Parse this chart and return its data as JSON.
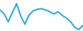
{
  "x": [
    0,
    1,
    2,
    3,
    4,
    5,
    6,
    7,
    8,
    9,
    10,
    11,
    12,
    13,
    14,
    15,
    16,
    17,
    18,
    19,
    20
  ],
  "y": [
    0.68,
    0.55,
    0.3,
    0.6,
    0.88,
    0.48,
    0.22,
    0.52,
    0.65,
    0.7,
    0.72,
    0.68,
    0.62,
    0.55,
    0.62,
    0.5,
    0.42,
    0.3,
    0.12,
    0.05,
    0.18
  ],
  "line_color": "#2ba7d8",
  "linewidth": 1.5,
  "background_color": "#ffffff",
  "ylim": [
    0.0,
    1.0
  ],
  "xlim": [
    0,
    20
  ]
}
